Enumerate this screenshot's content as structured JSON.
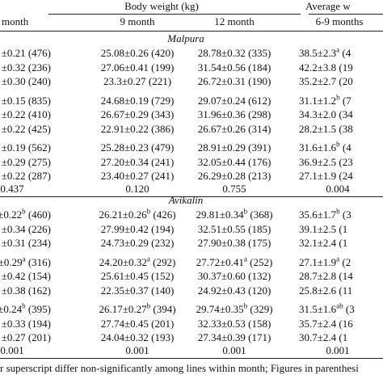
{
  "table": {
    "header": {
      "group1": "Body weight (kg)",
      "group2": "Average w",
      "columns": [
        "month",
        "9 month",
        "12 month",
        "6-9 months"
      ]
    },
    "sections": [
      {
        "name": "Malpura",
        "groups": [
          [
            [
              "±0.21 (476)",
              "25.08±0.26 (420)",
              "28.78±0.32 (335)",
              {
                "text": "38.5±2.3",
                "sup": "a",
                "tail": " (4"
              }
            ],
            [
              "±0.32 (236)",
              "27.06±0.41 (199)",
              "31.54±0.56 (184)",
              "42.2±3.8 (19"
            ],
            [
              "±0.30 (240)",
              "23.3±0.27 (221)",
              "26.72±0.31 (190)",
              "35.2±2.7 (20"
            ]
          ],
          [
            [
              "±0.15 (835)",
              "24.68±0.19 (729)",
              "29.07±0.24 (612)",
              {
                "text": "31.1±1.2",
                "sup": "b",
                "tail": " (7"
              }
            ],
            [
              "±0.22 (410)",
              "26.67±0.29 (343)",
              "31.96±0.36 (298)",
              "34.3±2.0 (34"
            ],
            [
              "±0.22 (425)",
              "22.91±0.22 (386)",
              "26.67±0.26 (314)",
              "28.2±1.5 (38"
            ]
          ],
          [
            [
              "±0.19 (562)",
              "25.28±0.23 (479)",
              "28.91±0.29 (391)",
              {
                "text": "31.6±1.6",
                "sup": "b",
                "tail": " (4"
              }
            ],
            [
              "±0.29 (275)",
              "27.20±0.34 (241)",
              "32.05±0.44 (176)",
              "36.9±2.5 (23"
            ],
            [
              "±0.22 (287)",
              "23.40±0.27 (241)",
              "26.29±0.28 (213)",
              "27.1±1.9 (24"
            ]
          ]
        ],
        "p_values": [
          "0.437",
          "0.120",
          "0.755",
          "0.004"
        ]
      },
      {
        "name": "Avikalin",
        "groups": [
          [
            [
              {
                "text": "±0.22",
                "sup": "b",
                "tail": " (460)"
              },
              {
                "text": "26.21±0.26",
                "sup": "b",
                "tail": " (426)"
              },
              {
                "text": "29.81±0.34",
                "sup": "b",
                "tail": " (368)"
              },
              {
                "text": "35.6±1.7",
                "sup": "b",
                "tail": " (3"
              }
            ],
            [
              "±0.34 (226)",
              "27.99±0.42 (194)",
              "32.51±0.55 (185)",
              "39.1±2.5 (1"
            ],
            [
              "±0.31 (234)",
              "24.73±0.29 (232)",
              "27.90±0.38 (175)",
              "32.1±2.4 (1"
            ]
          ],
          [
            [
              {
                "text": "±0.29",
                "sup": "a",
                "tail": " (316)"
              },
              {
                "text": "24.20±0.32",
                "sup": "a",
                "tail": " (292)"
              },
              {
                "text": "27.72±0.41",
                "sup": "a",
                "tail": " (252)"
              },
              {
                "text": "27.1±1.9",
                "sup": "a",
                "tail": " (2"
              }
            ],
            [
              "±0.42 (154)",
              "25.61±0.45 (152)",
              "30.37±0.60 (132)",
              "28.7±2.8 (14"
            ],
            [
              "±0.38 (162)",
              "22.35±0.37 (140)",
              "24.92±0.43 (120)",
              "25.8±2.6 (11"
            ]
          ],
          [
            [
              {
                "text": "±0.24",
                "sup": "b",
                "tail": " (395)"
              },
              {
                "text": "26.17±0.27",
                "sup": "b",
                "tail": " (394)"
              },
              {
                "text": "29.74±0.35",
                "sup": "b",
                "tail": " (329)"
              },
              {
                "text": "31.5±1.6",
                "sup": "ab",
                "tail": " (3"
              }
            ],
            [
              "±0.33 (194)",
              "27.74±0.45 (201)",
              "32.33±0.53 (158)",
              "35.7±2.4 (16"
            ],
            [
              "±0.27 (201)",
              "24.04±0.32 (193)",
              "27.34±0.39 (171)",
              "30.7±2.4 (1"
            ]
          ]
        ],
        "p_values": [
          "0.001",
          "0.001",
          "0.001",
          "0.001"
        ]
      }
    ],
    "footnote": "r superscript differ non-significantly among lines within month; Figures in parenthesi"
  }
}
